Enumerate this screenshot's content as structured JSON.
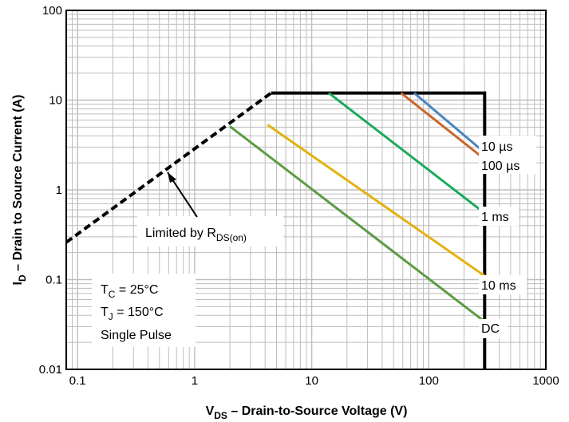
{
  "chart_data": {
    "type": "line",
    "x_scale": "log",
    "y_scale": "log",
    "xlim": [
      0.08,
      1000
    ],
    "ylim": [
      0.01,
      100
    ],
    "x_ticks": [
      "0.1",
      "1",
      "10",
      "100",
      "1000"
    ],
    "y_ticks": [
      "0.01",
      "0.1",
      "1",
      "10",
      "100"
    ],
    "grid": true,
    "xlabel": {
      "main": "V",
      "sub": "DS",
      "rest": " – Drain-to-Source Voltage (V)"
    },
    "ylabel": {
      "main": "I",
      "sub": "D",
      "rest": " – Drain to Source Current (A)"
    },
    "series": [
      {
        "name": "Limited by R(DS(on))",
        "style": "dashed",
        "color": "#000000",
        "x": [
          0.08,
          4.5
        ],
        "y": [
          0.26,
          12
        ]
      },
      {
        "name": "Limit",
        "style": "solid",
        "color": "#000000",
        "x": [
          4.5,
          300,
          300
        ],
        "y": [
          12,
          12,
          0.01
        ]
      },
      {
        "name": "10 µs",
        "style": "solid",
        "color": "#4a86c1",
        "x": [
          75,
          300
        ],
        "y": [
          12,
          2.6
        ]
      },
      {
        "name": "100 µs",
        "style": "solid",
        "color": "#c8652c",
        "x": [
          58,
          300
        ],
        "y": [
          12,
          2.2
        ]
      },
      {
        "name": "1 ms",
        "style": "solid",
        "color": "#1aab5b",
        "x": [
          14,
          300
        ],
        "y": [
          12,
          0.55
        ]
      },
      {
        "name": "10 ms",
        "style": "solid",
        "color": "#e2b20e",
        "x": [
          4.2,
          300
        ],
        "y": [
          5.3,
          0.11
        ]
      },
      {
        "name": "DC",
        "style": "solid",
        "color": "#5b9c45",
        "x": [
          2,
          300
        ],
        "y": [
          5.1,
          0.034
        ]
      }
    ],
    "annotations": {
      "rds": {
        "main": "Limited by R",
        "sub": "DS(on)"
      },
      "conditions": [
        {
          "main": "T",
          "sub": "C",
          "rest": " = 25°C"
        },
        {
          "main": "T",
          "sub": "J",
          "rest": " = 150°C"
        },
        {
          "main": "Single Pulse",
          "sub": "",
          "rest": ""
        }
      ],
      "curve_labels": [
        "10 µs",
        "100 µs",
        "1 ms",
        "10 ms",
        "DC"
      ]
    }
  }
}
